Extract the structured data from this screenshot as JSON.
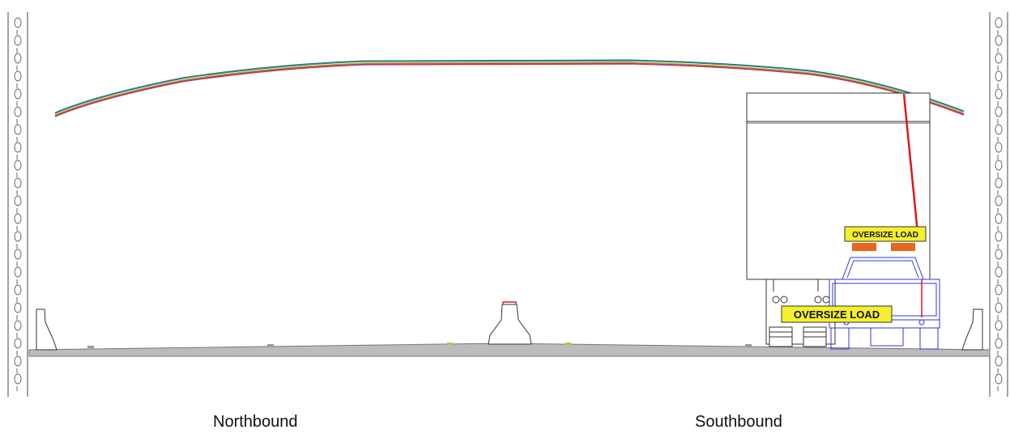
{
  "labels": {
    "northbound": "Northbound",
    "southbound": "Southbound"
  },
  "signs": {
    "top_sign": "OVERSIZE LOAD",
    "bumper_sign": "OVERSIZE LOAD"
  },
  "colors": {
    "road": "#bcbcbc",
    "sign_fill": "#f5ef2e",
    "escort_vehicle": "#2f3ad6",
    "measure_line": "#e01818",
    "beacon": "#e6661d",
    "wall_lines": "#444444"
  },
  "overhead_lines": [
    "#2a9a3a",
    "#d4a017",
    "#c0392b",
    "#2b5fb8",
    "#8e44ad"
  ]
}
